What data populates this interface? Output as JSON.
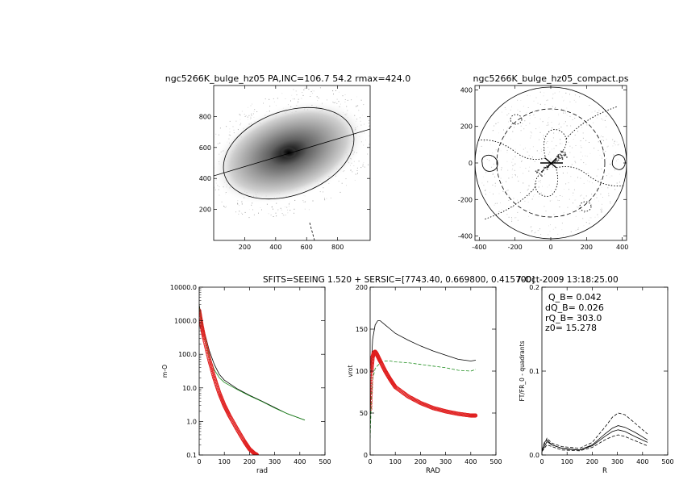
{
  "panels": {
    "galaxy_image": {
      "title": "ngc5266K_bulge_hz05 PA,INC=106.7 54.2 rmax=424.0",
      "xticks": [
        "200",
        "400",
        "600",
        "800"
      ],
      "yticks": [
        "200",
        "400",
        "600",
        "800"
      ]
    },
    "compact_map": {
      "title": "ngc5266K_bulge_hz05_compact.ps",
      "xticks": [
        "-400",
        "-200",
        "0",
        "200",
        "400"
      ],
      "yticks": [
        "-400",
        "-200",
        "0",
        "200",
        "400"
      ]
    },
    "header_line": {
      "fits_text": "SFITS=SEEING 1.520 + SERSIC=[7743.40, 0.669800, 0.415700]",
      "date_text": "7-Oct-2009 13:18:25.00"
    },
    "qb_values": {
      "q_b": "Q_B=  0.042",
      "dq_b": "dQ_B=  0.026",
      "rq_b": "rQ_B=  303.0",
      "z0": "z0= 15.278"
    }
  },
  "chart_data": [
    {
      "type": "image",
      "title": "ngc5266K_bulge_hz05 PA,INC=106.7 54.2 rmax=424.0",
      "xlim": [
        0,
        1010
      ],
      "ylim": [
        0,
        1000
      ],
      "ellipse": {
        "center": [
          455,
          545
        ],
        "semi_major": 424,
        "position_angle_deg": 106.7,
        "inclination_deg": 54.2
      }
    },
    {
      "type": "contour",
      "title": "ngc5266K_bulge_hz05_compact.ps",
      "xlim": [
        -424,
        424
      ],
      "ylim": [
        -424,
        424
      ],
      "circles_radius": [
        424,
        303
      ]
    },
    {
      "type": "line",
      "xlabel": "rad",
      "ylabel": "m-O",
      "xlim": [
        0,
        500
      ],
      "ylim": [
        0.1,
        10000
      ],
      "yscale": "log",
      "xticks": [
        "0",
        "100",
        "200",
        "300",
        "400",
        "500"
      ],
      "yticks": [
        "0.1",
        "1.0",
        "10.0",
        "100.0",
        "1000.0",
        "10000.0"
      ],
      "series": [
        {
          "color": "#000000",
          "x": [
            0,
            10,
            20,
            40,
            60,
            80,
            100,
            150,
            200,
            250,
            300,
            350,
            420
          ],
          "y": [
            3000,
            1100,
            500,
            130,
            50,
            25,
            17,
            9.5,
            6.0,
            4.0,
            2.6,
            1.7,
            1.1
          ]
        },
        {
          "color": "#1a8c1a",
          "x": [
            0,
            10,
            20,
            40,
            60,
            80,
            100,
            150,
            200,
            250,
            300,
            350,
            420
          ],
          "y": [
            2600,
            900,
            400,
            90,
            35,
            20,
            14.5,
            9.0,
            5.8,
            3.9,
            2.5,
            1.7,
            1.1
          ]
        },
        {
          "color": "#e02020",
          "marker": "o",
          "x": [
            0,
            10,
            20,
            40,
            60,
            80,
            100,
            120,
            150,
            180,
            200,
            220,
            230
          ],
          "y": [
            2000,
            700,
            300,
            70,
            20,
            7,
            3,
            1.5,
            0.6,
            0.25,
            0.15,
            0.11,
            0.1
          ]
        }
      ]
    },
    {
      "type": "line",
      "xlabel": "RAD",
      "ylabel": "vrot",
      "xlim": [
        0,
        500
      ],
      "ylim": [
        0,
        200
      ],
      "xticks": [
        "0",
        "100",
        "200",
        "300",
        "400",
        "500"
      ],
      "yticks": [
        "0",
        "50",
        "100",
        "150",
        "200"
      ],
      "series": [
        {
          "color": "#000000",
          "x": [
            0,
            5,
            10,
            20,
            30,
            40,
            60,
            80,
            100,
            150,
            200,
            250,
            300,
            350,
            400,
            420
          ],
          "y": [
            40,
            110,
            138,
            155,
            160,
            160,
            155,
            150,
            145,
            137,
            130,
            124,
            119,
            114,
            112,
            113
          ]
        },
        {
          "color": "#1a8c1a",
          "dashed": true,
          "x": [
            0,
            5,
            10,
            20,
            40,
            60,
            80,
            100,
            150,
            200,
            250,
            300,
            350,
            400,
            420
          ],
          "y": [
            20,
            70,
            90,
            103,
            110,
            112,
            112,
            111,
            110,
            108,
            106,
            104,
            101,
            100,
            102
          ]
        },
        {
          "color": "#e02020",
          "marker": "o",
          "x": [
            0,
            5,
            10,
            15,
            20,
            25,
            30,
            40,
            60,
            80,
            100,
            150,
            200,
            250,
            300,
            350,
            400,
            420
          ],
          "y": [
            55,
            100,
            117,
            122,
            123,
            121,
            118,
            112,
            100,
            90,
            81,
            70,
            62,
            56,
            52,
            49,
            47,
            47
          ]
        }
      ]
    },
    {
      "type": "line",
      "xlabel": "R",
      "ylabel": "FT/FR_0 - quadrants",
      "xlim": [
        0,
        500
      ],
      "ylim": [
        0,
        0.2
      ],
      "xticks": [
        "0",
        "100",
        "200",
        "300",
        "400",
        "500"
      ],
      "yticks": [
        "0.0",
        "0.1",
        "0.2"
      ],
      "series": [
        {
          "color": "#000000",
          "x": [
            0,
            10,
            20,
            40,
            60,
            80,
            100,
            150,
            200,
            250,
            280,
            303,
            330,
            370,
            420
          ],
          "y": [
            0.005,
            0.015,
            0.018,
            0.012,
            0.01,
            0.008,
            0.007,
            0.006,
            0.012,
            0.025,
            0.032,
            0.035,
            0.033,
            0.027,
            0.018
          ]
        },
        {
          "color": "#000000",
          "dashed": true,
          "x": [
            0,
            20,
            40,
            80,
            150,
            200,
            250,
            280,
            303,
            330,
            370,
            420
          ],
          "y": [
            0.006,
            0.02,
            0.014,
            0.01,
            0.008,
            0.015,
            0.033,
            0.045,
            0.05,
            0.048,
            0.038,
            0.025
          ]
        },
        {
          "color": "#000000",
          "dashed": true,
          "x": [
            0,
            20,
            40,
            80,
            150,
            200,
            250,
            280,
            303,
            330,
            370,
            420
          ],
          "y": [
            0.004,
            0.012,
            0.01,
            0.006,
            0.005,
            0.009,
            0.018,
            0.022,
            0.024,
            0.022,
            0.017,
            0.011
          ]
        },
        {
          "color": "#000000",
          "x": [
            0,
            20,
            40,
            80,
            150,
            200,
            250,
            280,
            303,
            330,
            370,
            420
          ],
          "y": [
            0.004,
            0.016,
            0.012,
            0.008,
            0.006,
            0.011,
            0.022,
            0.028,
            0.03,
            0.028,
            0.022,
            0.015
          ]
        }
      ],
      "text": [
        "Q_B=  0.042",
        "dQ_B=  0.026",
        "rQ_B=  303.0",
        "z0= 15.278"
      ]
    }
  ]
}
